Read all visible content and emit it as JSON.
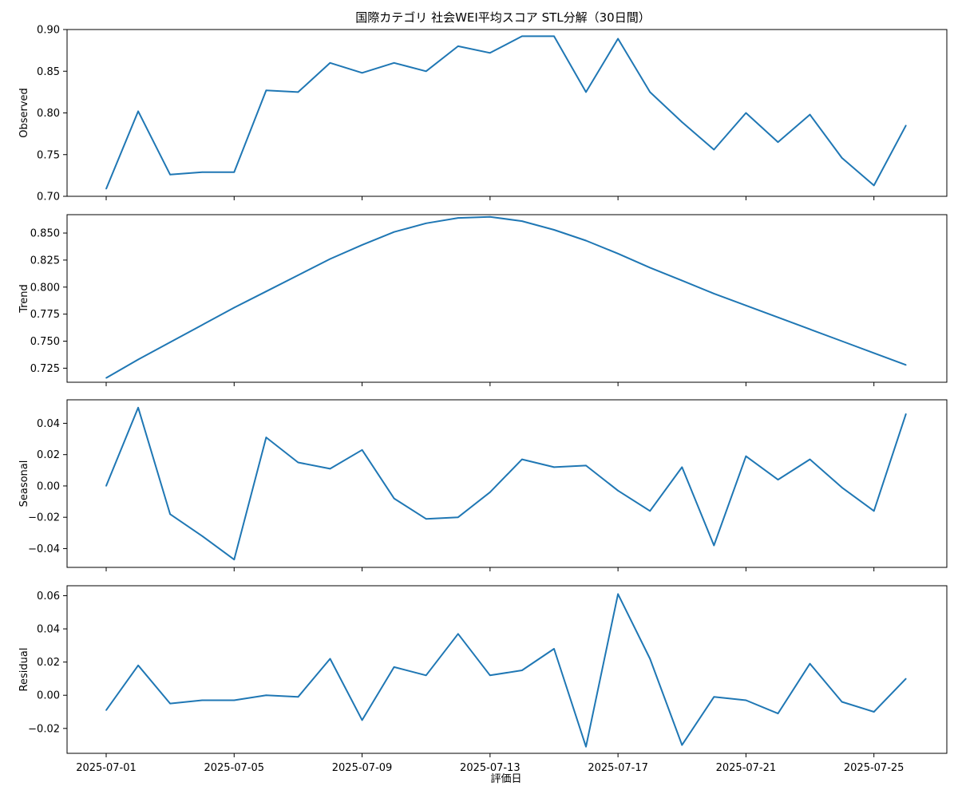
{
  "chart_data": {
    "type": "line",
    "title": "国際カテゴリ 社会WEI平均スコア STL分解（30日間）",
    "xlabel": "評価日",
    "x": [
      "2025-07-01",
      "2025-07-02",
      "2025-07-03",
      "2025-07-04",
      "2025-07-05",
      "2025-07-06",
      "2025-07-07",
      "2025-07-08",
      "2025-07-09",
      "2025-07-10",
      "2025-07-11",
      "2025-07-12",
      "2025-07-13",
      "2025-07-14",
      "2025-07-15",
      "2025-07-16",
      "2025-07-17",
      "2025-07-18",
      "2025-07-19",
      "2025-07-20",
      "2025-07-21",
      "2025-07-22",
      "2025-07-23",
      "2025-07-24",
      "2025-07-25",
      "2025-07-26"
    ],
    "xticks": [
      "2025-07-01",
      "2025-07-05",
      "2025-07-09",
      "2025-07-13",
      "2025-07-17",
      "2025-07-21",
      "2025-07-25"
    ],
    "line_color": "#1f77b4",
    "panels": [
      {
        "ylabel": "Observed",
        "ylim": [
          0.7,
          0.9
        ],
        "yticks": [
          "0.70",
          "0.75",
          "0.80",
          "0.85",
          "0.90"
        ],
        "values": [
          0.709,
          0.802,
          0.726,
          0.729,
          0.729,
          0.827,
          0.825,
          0.86,
          0.848,
          0.86,
          0.85,
          0.88,
          0.872,
          0.892,
          0.892,
          0.825,
          0.889,
          0.825,
          0.789,
          0.756,
          0.8,
          0.765,
          0.798,
          0.746,
          0.713,
          0.785
        ]
      },
      {
        "ylabel": "Trend",
        "ylim": [
          0.712,
          0.867
        ],
        "yticks": [
          "0.725",
          "0.750",
          "0.775",
          "0.800",
          "0.825",
          "0.850"
        ],
        "values": [
          0.716,
          0.733,
          0.749,
          0.765,
          0.781,
          0.796,
          0.811,
          0.826,
          0.839,
          0.851,
          0.859,
          0.864,
          0.865,
          0.861,
          0.853,
          0.843,
          0.831,
          0.818,
          0.806,
          0.794,
          0.783,
          0.772,
          0.761,
          0.75,
          0.739,
          0.728
        ]
      },
      {
        "ylabel": "Seasonal",
        "ylim": [
          -0.052,
          0.055
        ],
        "yticks": [
          "−0.04",
          "−0.02",
          "0.00",
          "0.02",
          "0.04"
        ],
        "values": [
          0.0,
          0.05,
          -0.018,
          -0.032,
          -0.047,
          0.031,
          0.015,
          0.011,
          0.023,
          -0.008,
          -0.021,
          -0.02,
          -0.004,
          0.017,
          0.012,
          0.013,
          -0.003,
          -0.016,
          0.012,
          -0.038,
          0.019,
          0.004,
          0.017,
          -0.001,
          -0.016,
          0.046
        ]
      },
      {
        "ylabel": "Residual",
        "ylim": [
          -0.035,
          0.066
        ],
        "yticks": [
          "−0.02",
          "0.00",
          "0.02",
          "0.04",
          "0.06"
        ],
        "values": [
          -0.009,
          0.018,
          -0.005,
          -0.003,
          -0.003,
          0.0,
          -0.001,
          0.022,
          -0.015,
          0.017,
          0.012,
          0.037,
          0.012,
          0.015,
          0.028,
          -0.031,
          0.061,
          0.022,
          -0.03,
          -0.001,
          -0.003,
          -0.011,
          0.019,
          -0.004,
          -0.01,
          0.01
        ]
      }
    ]
  }
}
